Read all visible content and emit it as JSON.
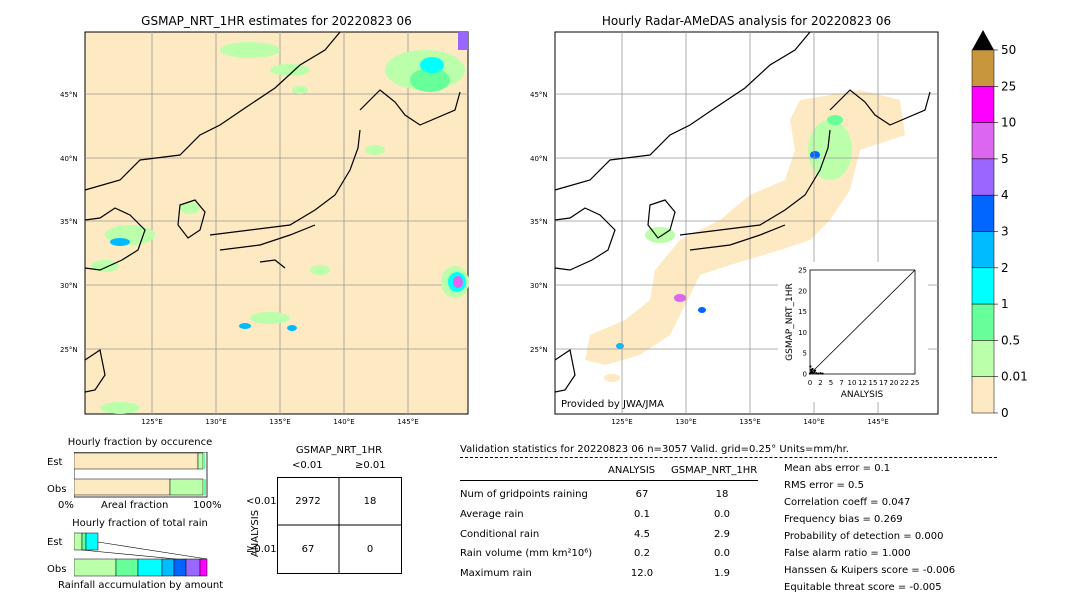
{
  "left_map": {
    "title": "GSMAP_NRT_1HR estimates for 20220823 06",
    "lat_labels": [
      "45°N",
      "40°N",
      "35°N",
      "30°N",
      "25°N"
    ],
    "lon_labels": [
      "125°E",
      "130°E",
      "135°E",
      "140°E",
      "145°E"
    ]
  },
  "right_map": {
    "title": "Hourly Radar-AMeDAS analysis for 20220823 06",
    "lat_labels": [
      "45°N",
      "40°N",
      "35°N",
      "30°N",
      "25°N"
    ],
    "lon_labels": [
      "125°E",
      "130°E",
      "135°E",
      "140°E",
      "145°E"
    ],
    "credit": "Provided by JWA/JMA"
  },
  "colorbar": {
    "labels": [
      "50",
      "25",
      "10",
      "5",
      "4",
      "3",
      "2",
      "1",
      "0.5",
      "0.01",
      "0"
    ],
    "colors": [
      "#c8963c",
      "#ff00ff",
      "#dd66f0",
      "#9966ff",
      "#0066ff",
      "#00bbff",
      "#00ffff",
      "#66ff99",
      "#bbffaa",
      "#fde9c2"
    ],
    "extend_color": "#000000"
  },
  "chart_data": [
    {
      "type": "scatter",
      "title": "",
      "xlabel": "ANALYSIS",
      "ylabel": "GSMAP_NRT_1HR",
      "xlim": [
        0,
        25
      ],
      "ylim": [
        0,
        25
      ],
      "xticks": [
        "0",
        "2",
        "5",
        "7",
        "10",
        "12",
        "15",
        "17",
        "20",
        "22",
        "25"
      ],
      "yticks": [
        "0",
        "5",
        "10",
        "15",
        "20",
        "25"
      ],
      "points": [
        [
          0,
          0.1
        ],
        [
          0.2,
          0.3
        ],
        [
          0.5,
          0.6
        ],
        [
          0.7,
          0.2
        ],
        [
          1,
          0.4
        ],
        [
          1.5,
          0.2
        ],
        [
          2,
          0.1
        ],
        [
          2.5,
          0.2
        ],
        [
          3,
          0.1
        ],
        [
          0.3,
          1
        ],
        [
          0.1,
          1.8
        ],
        [
          0.4,
          0.5
        ],
        [
          1.2,
          0.8
        ],
        [
          0.6,
          1.2
        ]
      ]
    },
    {
      "type": "bar",
      "title": "Hourly fraction by occurence",
      "categories": [
        "Est",
        "Obs"
      ],
      "xlabel": "Areal fraction",
      "xlim_labels": [
        "0%",
        "100%"
      ],
      "series": [
        {
          "values": [
            0.95,
            0.72
          ],
          "color": "#fde9c2"
        },
        {
          "values": [
            0.03,
            0.25
          ],
          "color": "#bbffaa"
        },
        {
          "values": [
            0.01,
            0.02
          ],
          "color": "#66ff99"
        }
      ]
    },
    {
      "type": "bar",
      "title": "Hourly fraction of total rain",
      "categories": [
        "Est",
        "Obs"
      ],
      "xlabel": "Rainfall accumulation by amount"
    },
    {
      "type": "table",
      "title": "GSMAP_NRT_1HR",
      "col_labels": [
        "<0.01",
        "≥0.01"
      ],
      "row_title": "ANALYSIS",
      "row_labels": [
        "<0.01",
        "≥0.01"
      ],
      "cells": [
        [
          "2972",
          "18"
        ],
        [
          "67",
          "0"
        ]
      ]
    }
  ],
  "validation": {
    "header": "Validation statistics for 20220823 06  n=3057 Valid. grid=0.25° Units=mm/hr.",
    "col_analysis": "ANALYSIS",
    "col_gsmap": "GSMAP_NRT_1HR",
    "rows": [
      {
        "label": "Num of gridpoints raining",
        "analysis": "67",
        "gsmap": "18"
      },
      {
        "label": "Average rain",
        "analysis": "0.1",
        "gsmap": "0.0"
      },
      {
        "label": "Conditional rain",
        "analysis": "4.5",
        "gsmap": "2.9"
      },
      {
        "label": "Rain volume (mm km²10⁶)",
        "analysis": "0.2",
        "gsmap": "0.0"
      },
      {
        "label": "Maximum rain",
        "analysis": "12.0",
        "gsmap": "1.9"
      }
    ],
    "scores": [
      "Mean abs error =    0.1",
      "RMS error =    0.5",
      "Correlation coeff =  0.047",
      "Frequency bias =  0.269",
      "Probability of detection =  0.000",
      "False alarm ratio =  1.000",
      "Hanssen & Kuipers score = -0.006",
      "Equitable threat score = -0.005"
    ]
  }
}
